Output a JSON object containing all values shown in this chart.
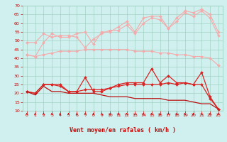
{
  "x": [
    0,
    1,
    2,
    3,
    4,
    5,
    6,
    7,
    8,
    9,
    10,
    11,
    12,
    13,
    14,
    15,
    16,
    17,
    18,
    19,
    20,
    21,
    22,
    23
  ],
  "series": [
    {
      "name": "rafales_top",
      "color": "#f4aaaa",
      "linewidth": 0.8,
      "marker": "D",
      "markersize": 2.0,
      "values": [
        42,
        41,
        49,
        54,
        52,
        52,
        54,
        55,
        48,
        55,
        55,
        58,
        61,
        55,
        63,
        64,
        64,
        57,
        63,
        67,
        66,
        68,
        65,
        55
      ]
    },
    {
      "name": "rafales_mid",
      "color": "#f4aaaa",
      "linewidth": 0.8,
      "marker": "D",
      "markersize": 2.0,
      "values": [
        49,
        49,
        54,
        52,
        53,
        53,
        52,
        46,
        51,
        54,
        56,
        56,
        59,
        54,
        60,
        63,
        62,
        57,
        61,
        66,
        64,
        67,
        63,
        53
      ]
    },
    {
      "name": "rafales_low",
      "color": "#f4aaaa",
      "linewidth": 0.8,
      "marker": "D",
      "markersize": 2.0,
      "values": [
        42,
        41,
        42,
        43,
        44,
        44,
        44,
        45,
        45,
        45,
        45,
        45,
        45,
        44,
        44,
        44,
        43,
        43,
        42,
        42,
        41,
        41,
        40,
        36
      ]
    },
    {
      "name": "vent_max",
      "color": "#dd2222",
      "linewidth": 0.9,
      "marker": "D",
      "markersize": 2.0,
      "values": [
        21,
        20,
        25,
        25,
        25,
        21,
        21,
        29,
        21,
        21,
        23,
        25,
        26,
        26,
        26,
        34,
        26,
        30,
        26,
        26,
        25,
        32,
        18,
        11
      ]
    },
    {
      "name": "vent_moy",
      "color": "#dd2222",
      "linewidth": 0.9,
      "marker": "D",
      "markersize": 2.0,
      "values": [
        21,
        20,
        25,
        25,
        24,
        21,
        21,
        22,
        22,
        22,
        23,
        24,
        25,
        25,
        25,
        25,
        25,
        26,
        25,
        26,
        25,
        25,
        17,
        11
      ]
    },
    {
      "name": "vent_min",
      "color": "#bb1111",
      "linewidth": 0.9,
      "marker": null,
      "markersize": 0,
      "values": [
        21,
        19,
        24,
        21,
        21,
        20,
        20,
        20,
        20,
        19,
        18,
        18,
        18,
        17,
        17,
        17,
        17,
        16,
        16,
        16,
        15,
        14,
        14,
        11
      ]
    }
  ],
  "xlabel": "Vent moyen/en rafales ( km/h )",
  "ylim": [
    10,
    70
  ],
  "xlim_min": -0.5,
  "xlim_max": 23.5,
  "yticks": [
    10,
    15,
    20,
    25,
    30,
    35,
    40,
    45,
    50,
    55,
    60,
    65,
    70
  ],
  "xticks": [
    0,
    1,
    2,
    3,
    4,
    5,
    6,
    7,
    8,
    9,
    10,
    11,
    12,
    13,
    14,
    15,
    16,
    17,
    18,
    19,
    20,
    21,
    22,
    23
  ],
  "bg_color": "#cff0ee",
  "grid_color": "#99ccbb",
  "tick_color": "#cc0000",
  "label_color": "#cc0000",
  "arrow_color": "#cc0000"
}
